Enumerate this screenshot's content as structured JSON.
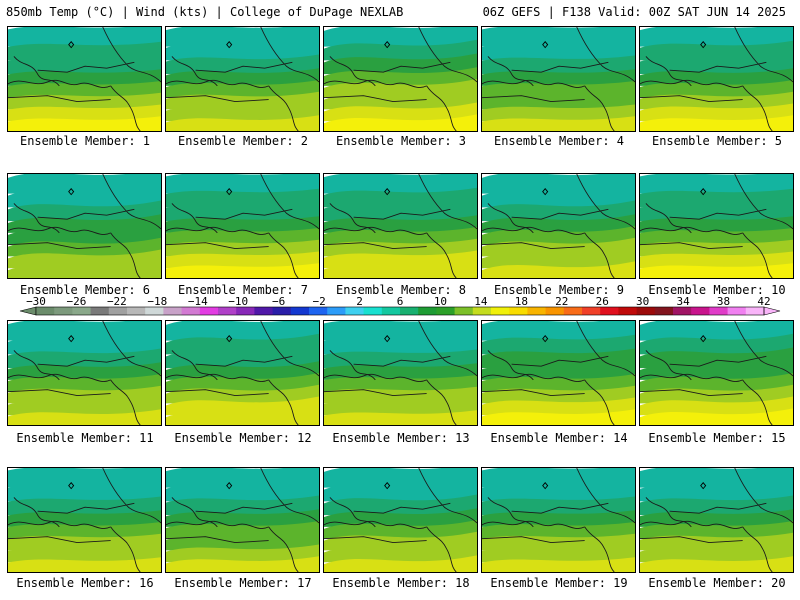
{
  "header": {
    "left": "850mb Temp (°C) | Wind (kts) | College of DuPage NEXLAB",
    "right": "06Z GEFS | F138 Valid: 00Z SAT JUN 14 2025"
  },
  "caption_prefix": "Ensemble Member:",
  "members": [
    {
      "id": "1",
      "label": "Ensemble Member: 1",
      "warmth": 0.62
    },
    {
      "id": "2",
      "label": "Ensemble Member: 2",
      "warmth": 0.5
    },
    {
      "id": "3",
      "label": "Ensemble Member: 3",
      "warmth": 0.85
    },
    {
      "id": "4",
      "label": "Ensemble Member: 4",
      "warmth": 0.45
    },
    {
      "id": "5",
      "label": "Ensemble Member: 5",
      "warmth": 0.7
    },
    {
      "id": "6",
      "label": "Ensemble Member: 6",
      "warmth": 0.3
    },
    {
      "id": "7",
      "label": "Ensemble Member: 7",
      "warmth": 0.62
    },
    {
      "id": "8",
      "label": "Ensemble Member: 8",
      "warmth": 0.58
    },
    {
      "id": "9",
      "label": "Ensemble Member: 9",
      "warmth": 0.55
    },
    {
      "id": "10",
      "label": "Ensemble Member: 10",
      "warmth": 0.68
    },
    {
      "id": "11",
      "label": "Ensemble Member: 11",
      "warmth": 0.55
    },
    {
      "id": "12",
      "label": "Ensemble Member: 12",
      "warmth": 0.6
    },
    {
      "id": "13",
      "label": "Ensemble Member: 13",
      "warmth": 0.55
    },
    {
      "id": "14",
      "label": "Ensemble Member: 14",
      "warmth": 0.75
    },
    {
      "id": "15",
      "label": "Ensemble Member: 15",
      "warmth": 0.72
    },
    {
      "id": "16",
      "label": "Ensemble Member: 16",
      "warmth": 0.5
    },
    {
      "id": "17",
      "label": "Ensemble Member: 17",
      "warmth": 0.45
    },
    {
      "id": "18",
      "label": "Ensemble Member: 18",
      "warmth": 0.5
    },
    {
      "id": "19",
      "label": "Ensemble Member: 19",
      "warmth": 0.55
    },
    {
      "id": "20",
      "label": "Ensemble Member: 20",
      "warmth": 0.52
    }
  ],
  "colorbar": {
    "ticks": [
      "−30",
      "−26",
      "−22",
      "−18",
      "−14",
      "−10",
      "−6",
      "−2",
      "2",
      "6",
      "10",
      "14",
      "18",
      "22",
      "26",
      "30",
      "34",
      "38",
      "42"
    ],
    "colors": [
      "#6b8c6b",
      "#7d9a7d",
      "#8aa88a",
      "#7a7a7a",
      "#a0a0a0",
      "#b8b8b8",
      "#cfd8d8",
      "#c8a2c8",
      "#d27ad2",
      "#e23ce2",
      "#b040c8",
      "#8828b8",
      "#5018a8",
      "#2a1ea8",
      "#1438d0",
      "#1e64f0",
      "#2c9cf8",
      "#3ed0f0",
      "#18e0d0",
      "#14c8a0",
      "#18b070",
      "#1e9c34",
      "#2ca028",
      "#7cc028",
      "#c4dc1e",
      "#f0f00a",
      "#f8dc00",
      "#f8b400",
      "#f89400",
      "#f86c18",
      "#f04028",
      "#e0101e",
      "#c00a0a",
      "#9c0a0a",
      "#82141e",
      "#a01464",
      "#c8148c",
      "#e03cc8",
      "#f080f0",
      "#f8b4f8"
    ]
  }
}
